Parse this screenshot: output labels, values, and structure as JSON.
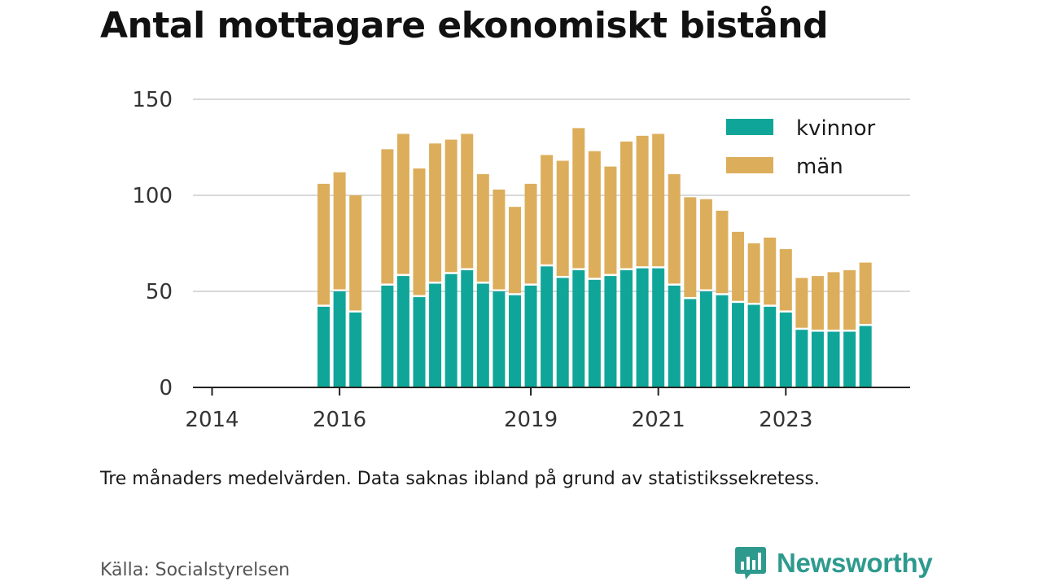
{
  "title": "Antal mottagare ekonomiskt bistånd",
  "note": "Tre månaders medelvärden. Data saknas ibland på grund av statistikssekretess.",
  "source": "Källa: Socialstyrelsen",
  "brand": {
    "name": "Newsworthy",
    "icon": "newsworthy-logo-icon",
    "color": "#2e9a8e"
  },
  "colors": {
    "kvinnor": "#0fa699",
    "man": "#dcae5b",
    "grid": "#d9d9d9",
    "axis": "#222222"
  },
  "chart_data": {
    "type": "bar",
    "stacked": true,
    "ylim": [
      0,
      150
    ],
    "yticks": [
      0,
      50,
      100,
      150
    ],
    "xticks": [
      {
        "label": "2014",
        "at": 2014.0
      },
      {
        "label": "2016",
        "at": 2016.0
      },
      {
        "label": "2019",
        "at": 2019.0
      },
      {
        "label": "2021",
        "at": 2021.0
      },
      {
        "label": "2023",
        "at": 2023.0
      }
    ],
    "xlim": [
      2013.7,
      2024.95
    ],
    "grid": true,
    "legend_position": "top-right",
    "x": [
      2015.75,
      2016.0,
      2016.25,
      2016.75,
      2017.0,
      2017.25,
      2017.5,
      2017.75,
      2018.0,
      2018.25,
      2018.5,
      2018.75,
      2019.0,
      2019.25,
      2019.5,
      2019.75,
      2020.0,
      2020.25,
      2020.5,
      2020.75,
      2021.0,
      2021.25,
      2021.5,
      2021.75,
      2022.0,
      2022.25,
      2022.5,
      2022.75,
      2023.0,
      2023.25,
      2023.5,
      2023.75,
      2024.0,
      2024.25
    ],
    "series": [
      {
        "name": "kvinnor",
        "values": [
          42,
          50,
          39,
          53,
          58,
          47,
          54,
          59,
          61,
          54,
          50,
          48,
          53,
          63,
          57,
          61,
          56,
          58,
          61,
          62,
          62,
          53,
          46,
          50,
          48,
          44,
          43,
          42,
          39,
          30,
          29,
          29,
          29,
          32
        ]
      },
      {
        "name": "män",
        "values": [
          64,
          62,
          61,
          71,
          74,
          67,
          73,
          70,
          71,
          57,
          53,
          46,
          53,
          58,
          61,
          74,
          67,
          57,
          67,
          69,
          70,
          58,
          53,
          48,
          44,
          37,
          32,
          36,
          33,
          27,
          29,
          31,
          32,
          33
        ]
      }
    ]
  }
}
